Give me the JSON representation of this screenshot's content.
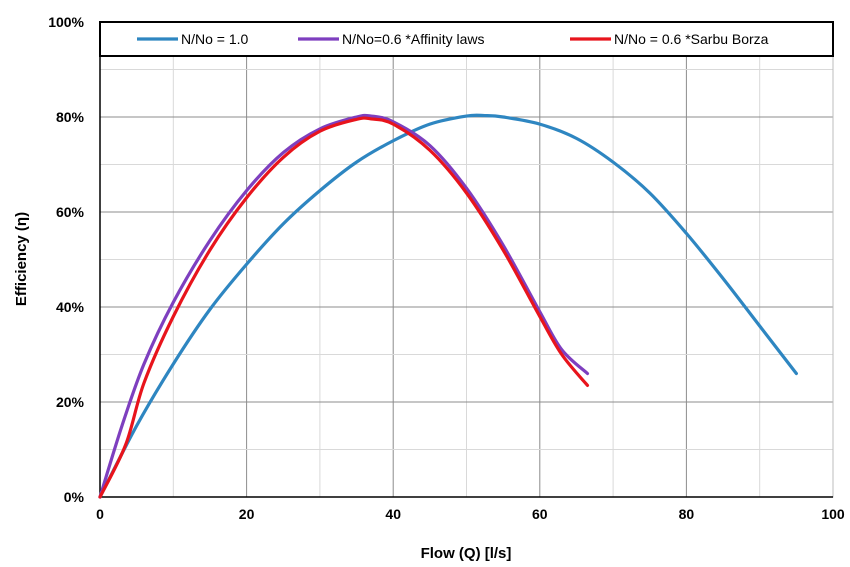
{
  "chart_data": {
    "type": "line",
    "xlabel": "Flow (Q) [l/s]",
    "ylabel": "Efficiency (η)",
    "xlim": [
      0,
      100
    ],
    "ylim": [
      0,
      100
    ],
    "x_ticks": [
      "0",
      "20",
      "40",
      "60",
      "80",
      "100"
    ],
    "y_ticks": [
      "0%",
      "20%",
      "40%",
      "60%",
      "80%",
      "100%"
    ],
    "grid": true,
    "legend_placement": "top",
    "series": [
      {
        "name": "N/No = 1.0",
        "color": "#2E86C1",
        "x": [
          0,
          5,
          10,
          15,
          20,
          25,
          30,
          35,
          40,
          45,
          50,
          52.5,
          55,
          60,
          65,
          70,
          75,
          80,
          85,
          90,
          95
        ],
        "y": [
          0,
          15,
          28,
          39.5,
          49,
          57.5,
          64.5,
          70.5,
          75,
          78.5,
          80.2,
          80.3,
          80,
          78.5,
          75.5,
          70.5,
          64,
          55.5,
          46,
          36,
          26
        ]
      },
      {
        "name": "N/No=0.6 *Affinity laws",
        "color": "#7E3FBF",
        "x": [
          0,
          3,
          6,
          10,
          15,
          20,
          25,
          30,
          35,
          37,
          40,
          45,
          50,
          55,
          60,
          63,
          66.5
        ],
        "y": [
          0,
          15,
          28,
          41,
          54,
          64.5,
          72.5,
          77.5,
          80,
          80.2,
          79,
          74,
          65,
          53,
          39,
          31,
          26
        ]
      },
      {
        "name": "N/No = 0.6 *Sarbu Borza",
        "color": "#E8141C",
        "x": [
          0,
          3.5,
          6,
          10,
          15,
          20,
          25,
          30,
          35,
          37,
          40,
          45,
          50,
          55,
          60,
          63,
          66.5
        ],
        "y": [
          0,
          11,
          24,
          38,
          52,
          63,
          71.5,
          77,
          79.5,
          79.6,
          78.5,
          73,
          64,
          52,
          38,
          30,
          23.5
        ]
      }
    ]
  }
}
